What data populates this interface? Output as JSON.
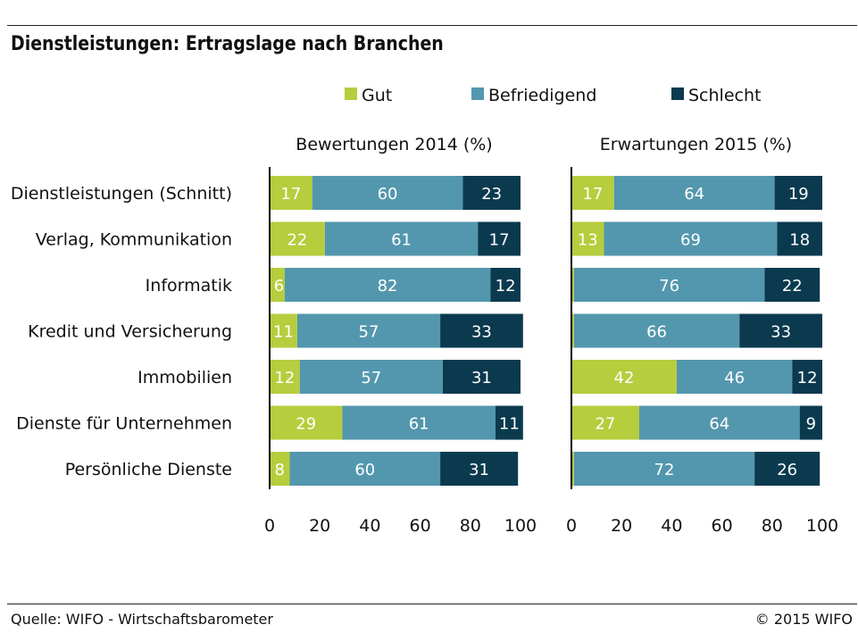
{
  "title": "Dienstleistungen: Ertragslage nach Branchen",
  "source": "Quelle: WIFO - Wirtschaftsbarometer",
  "copyright": "© 2015 WIFO",
  "colors": {
    "gut": "#b6cd3d",
    "befriedigend": "#5397ae",
    "schlecht": "#0b3a4f",
    "axis": "#000000"
  },
  "chart_data": [
    {
      "type": "bar",
      "orientation": "horizontal",
      "stacked": true,
      "title": "Bewertungen 2014 (%)",
      "categories": [
        "Dienstleistungen (Schnitt)",
        "Verlag, Kommunikation",
        "Informatik",
        "Kredit und Versicherung",
        "Immobilien",
        "Dienste für Unternehmen",
        "Persönliche Dienste"
      ],
      "series": [
        {
          "name": "Gut",
          "color": "#b6cd3d",
          "values": [
            17,
            22,
            6,
            11,
            12,
            29,
            8
          ],
          "labels": [
            "17",
            "22",
            "6",
            "11",
            "12",
            "29",
            "8"
          ]
        },
        {
          "name": "Befriedigend",
          "color": "#5397ae",
          "values": [
            60,
            61,
            82,
            57,
            57,
            61,
            60
          ],
          "labels": [
            "60",
            "61",
            "82",
            "57",
            "57",
            "61",
            "60"
          ]
        },
        {
          "name": "Schlecht",
          "color": "#0b3a4f",
          "values": [
            23,
            17,
            12,
            33,
            31,
            11,
            31
          ],
          "labels": [
            "23",
            "17",
            "12",
            "33",
            "31",
            "11",
            "31"
          ]
        }
      ],
      "xlim": [
        0,
        100
      ],
      "xticks": [
        "0",
        "20",
        "40",
        "60",
        "80",
        "100"
      ],
      "grid": false,
      "legend": "top"
    },
    {
      "type": "bar",
      "orientation": "horizontal",
      "stacked": true,
      "title": "Erwartungen 2015 (%)",
      "categories": [
        "Dienstleistungen (Schnitt)",
        "Verlag, Kommunikation",
        "Informatik",
        "Kredit und Versicherung",
        "Immobilien",
        "Dienste für Unternehmen",
        "Persönliche Dienste"
      ],
      "series": [
        {
          "name": "Gut",
          "color": "#b6cd3d",
          "values": [
            17,
            13,
            1,
            1,
            42,
            27,
            1
          ],
          "labels": [
            "17",
            "13",
            "",
            "",
            "42",
            "27",
            ""
          ]
        },
        {
          "name": "Befriedigend",
          "color": "#5397ae",
          "values": [
            64,
            69,
            76,
            66,
            46,
            64,
            72
          ],
          "labels": [
            "64",
            "69",
            "76",
            "66",
            "46",
            "64",
            "72"
          ]
        },
        {
          "name": "Schlecht",
          "color": "#0b3a4f",
          "values": [
            19,
            18,
            22,
            33,
            12,
            9,
            26
          ],
          "labels": [
            "19",
            "18",
            "22",
            "33",
            "12",
            "9",
            "26"
          ]
        }
      ],
      "xlim": [
        0,
        100
      ],
      "xticks": [
        "0",
        "20",
        "40",
        "60",
        "80",
        "100"
      ],
      "grid": false,
      "legend": "top"
    }
  ]
}
